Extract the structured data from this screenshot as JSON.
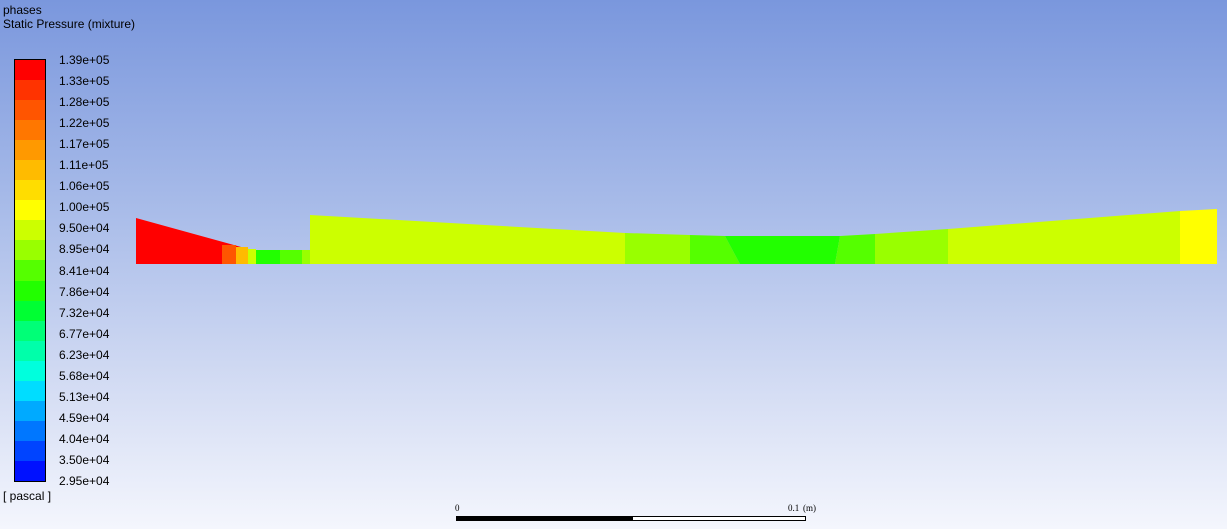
{
  "header": {
    "phases": "phases",
    "quantity": "Static Pressure (mixture)"
  },
  "legend": {
    "unit": "[ pascal ]",
    "ticks": [
      "1.39e+05",
      "1.33e+05",
      "1.28e+05",
      "1.22e+05",
      "1.17e+05",
      "1.11e+05",
      "1.06e+05",
      "1.00e+05",
      "9.50e+04",
      "8.95e+04",
      "8.41e+04",
      "7.86e+04",
      "7.32e+04",
      "6.77e+04",
      "6.23e+04",
      "5.68e+04",
      "5.13e+04",
      "4.59e+04",
      "4.04e+04",
      "3.50e+04",
      "2.95e+04"
    ],
    "colors": [
      "#ff0000",
      "#ff3300",
      "#ff5500",
      "#ff7700",
      "#ff9900",
      "#ffbb00",
      "#ffdd00",
      "#ffff00",
      "#ccff00",
      "#99ff00",
      "#55ff00",
      "#22ff00",
      "#00ff33",
      "#00ff77",
      "#00ffaa",
      "#00ffdd",
      "#00ddff",
      "#00aaff",
      "#0077ff",
      "#0044ff",
      "#0011ff"
    ]
  },
  "scale_bar": {
    "left_label": "0",
    "right_label": "0.1",
    "unit": "(m)"
  }
}
